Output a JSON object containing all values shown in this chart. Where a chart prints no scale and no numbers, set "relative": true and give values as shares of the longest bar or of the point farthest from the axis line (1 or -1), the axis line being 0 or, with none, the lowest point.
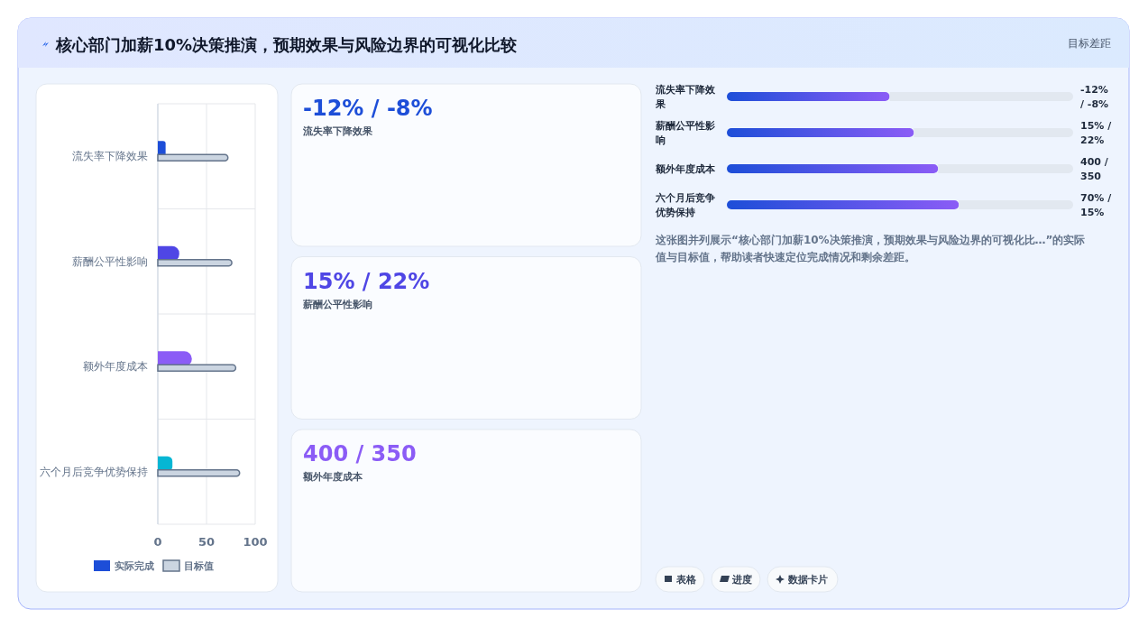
{
  "chart_data": [
    {
      "type": "other",
      "title": "核心部门加薪10%决策推演，预期效果与风险边界的可视化比较",
      "subtitle": "目标差距"
    },
    {
      "type": "bar",
      "orientation": "horizontal",
      "categories": [
        "流失率下降效果",
        "薪酬公平性影响",
        "额外年度成本",
        "六个月后竞争优势保持"
      ],
      "series": [
        {
          "name": "实际完成",
          "color": "#1d4ed8",
          "colors": [
            "#1d4ed8",
            "#4f46e5",
            "#8b5cf6",
            "#06b6d4"
          ],
          "values": [
            8,
            22,
            35,
            15
          ]
        },
        {
          "name": "目标值",
          "color": "#cbd5e1",
          "values": [
            72,
            76,
            80,
            84
          ]
        }
      ],
      "xlim": [
        0,
        100
      ],
      "xticks": [
        0,
        50,
        100
      ],
      "grid": true,
      "legend": "bottom"
    },
    {
      "type": "other",
      "categories": [
        "流失率下降效果",
        "薪酬公平性影响",
        "额外年度成本"
      ],
      "value_labels": [
        "-12% / -8%",
        "15% / 22%",
        "400 / 350"
      ]
    },
    {
      "type": "bar",
      "orientation": "horizontal",
      "relative": true,
      "categories": [
        "流失率下降效果",
        "薪酬公平性影响",
        "额外年度成本",
        "六个月后竞争优势保持"
      ],
      "stacked": true,
      "series": [
        {
          "color": "#1d4ed8",
          "values": [
            0.47,
            0.54,
            0.61,
            0.67
          ]
        },
        {
          "color": "#e2e8f0",
          "values": [
            0.53,
            0.46,
            0.39,
            0.33
          ]
        }
      ],
      "annotations": [
        "-12% / -8%",
        "15% / 22%",
        "400 / 350",
        "70% / 15%",
        "这张图并列展示“核心部门加薪10%决策推演，预期效果与风险边界的可视化比…”的实际值与目标值，帮助读者快速定位完成情况和剩余差距。",
        "表格",
        "进度",
        "数据卡片"
      ]
    }
  ]
}
